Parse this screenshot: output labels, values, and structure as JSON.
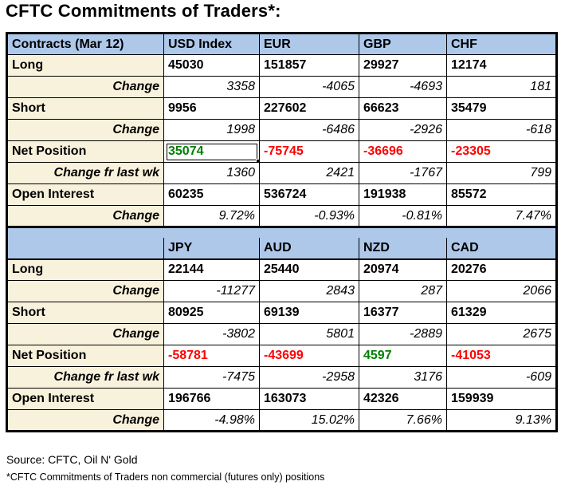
{
  "title": "CFTC Commitments of Traders*:",
  "colors": {
    "positive_value": "#008000",
    "negative_value": "#FF0000",
    "header_bg": "#AEC8EA",
    "label_bg": "#F8F1DC",
    "border": "#000000"
  },
  "sections": [
    {
      "header": [
        "Contracts (Mar 12)",
        "USD Index",
        "EUR",
        "GBP",
        "CHF"
      ],
      "rows": [
        {
          "label": "Long",
          "values": [
            "45030",
            "151857",
            "29927",
            "12174"
          ]
        },
        {
          "label": "Change",
          "values": [
            "3358",
            "-4065",
            "-4693",
            "181"
          ]
        },
        {
          "label": "Short",
          "values": [
            "9956",
            "227602",
            "66623",
            "35479"
          ]
        },
        {
          "label": "Change",
          "values": [
            "1998",
            "-6486",
            "-2926",
            "-618"
          ]
        },
        {
          "label": "Net Position",
          "values": [
            "35074",
            "-75745",
            "-36696",
            "-23305"
          ]
        },
        {
          "label": "Change fr last wk",
          "values": [
            "1360",
            "2421",
            "-1767",
            "799"
          ]
        },
        {
          "label": "Open Interest",
          "values": [
            "60235",
            "536724",
            "191938",
            "85572"
          ]
        },
        {
          "label": "Change",
          "values": [
            "9.72%",
            "-0.93%",
            "-0.81%",
            "7.47%"
          ]
        }
      ]
    },
    {
      "header": [
        "",
        "JPY",
        "AUD",
        "NZD",
        "CAD"
      ],
      "rows": [
        {
          "label": "Long",
          "values": [
            "22144",
            "25440",
            "20974",
            "20276"
          ]
        },
        {
          "label": "Change",
          "values": [
            "-11277",
            "2843",
            "287",
            "2066"
          ]
        },
        {
          "label": "Short",
          "values": [
            "80925",
            "69139",
            "16377",
            "61329"
          ]
        },
        {
          "label": "Change",
          "values": [
            "-3802",
            "5801",
            "-2889",
            "2675"
          ]
        },
        {
          "label": "Net Position",
          "values": [
            "-58781",
            "-43699",
            "4597",
            "-41053"
          ]
        },
        {
          "label": "Change fr last wk",
          "values": [
            "-7475",
            "-2958",
            "3176",
            "-609"
          ]
        },
        {
          "label": "Open Interest",
          "values": [
            "196766",
            "163073",
            "42326",
            "159939"
          ]
        },
        {
          "label": "Change",
          "values": [
            "-4.98%",
            "15.02%",
            "7.66%",
            "9.13%"
          ]
        }
      ]
    }
  ],
  "footer": {
    "source": "Source: CFTC, Oil N' Gold",
    "note": "*CFTC Commitments of Traders non commercial (futures only) positions"
  }
}
